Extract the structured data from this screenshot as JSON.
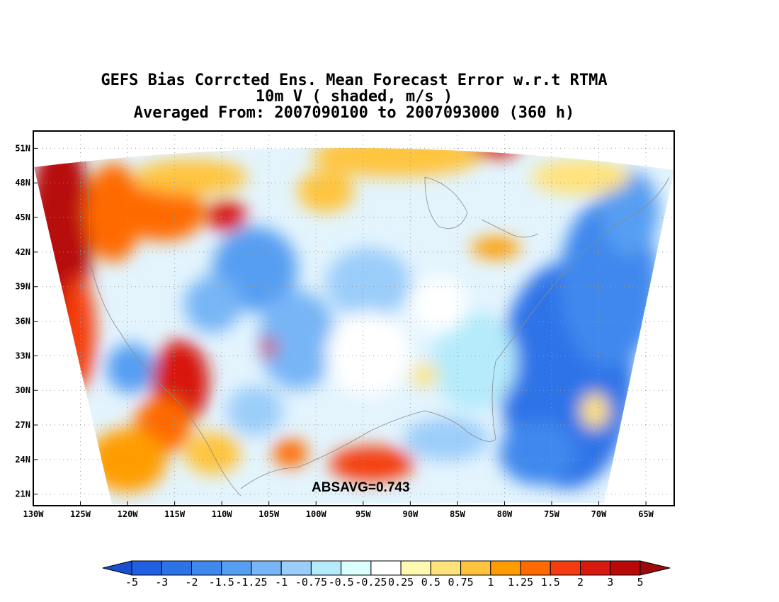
{
  "title": {
    "line1": "GEFS Bias Corrcted Ens. Mean Forecast Error w.r.t RTMA",
    "line2": "10m V ( shaded, m/s )",
    "line3": "Averaged From: 2007090100 to 2007093000 (360 h)"
  },
  "map": {
    "lat_labels": [
      "51N",
      "48N",
      "45N",
      "42N",
      "39N",
      "36N",
      "33N",
      "30N",
      "27N",
      "24N",
      "21N"
    ],
    "lon_labels": [
      "130W",
      "125W",
      "120W",
      "115W",
      "110W",
      "105W",
      "100W",
      "95W",
      "90W",
      "85W",
      "80W",
      "75W",
      "70W",
      "65W"
    ],
    "lon_range": [
      -130,
      -62
    ],
    "lat_range": [
      20,
      52.5
    ],
    "absavg_text": "ABSAVG=0.743",
    "grid": "dotted"
  },
  "colorbar": {
    "labels": [
      "-5",
      "-3",
      "-2",
      "-1.5",
      "-1.25",
      "-1",
      "-0.75",
      "-0.5",
      "-0.25",
      "0.25",
      "0.5",
      "0.75",
      "1",
      "1.25",
      "1.5",
      "2",
      "3",
      "5"
    ],
    "colors": [
      "#1f5fe0",
      "#2d73e8",
      "#3f88ee",
      "#569ef2",
      "#77b5f6",
      "#9bcdfa",
      "#b5ebfb",
      "#dafffd",
      "#ffffff",
      "#fff8b0",
      "#ffe27a",
      "#ffc43e",
      "#ff9d00",
      "#ff6a00",
      "#f53c10",
      "#d81910",
      "#b80808"
    ],
    "low_extend_color": "#1a4fd0",
    "high_extend_color": "#9e0a0a"
  }
}
